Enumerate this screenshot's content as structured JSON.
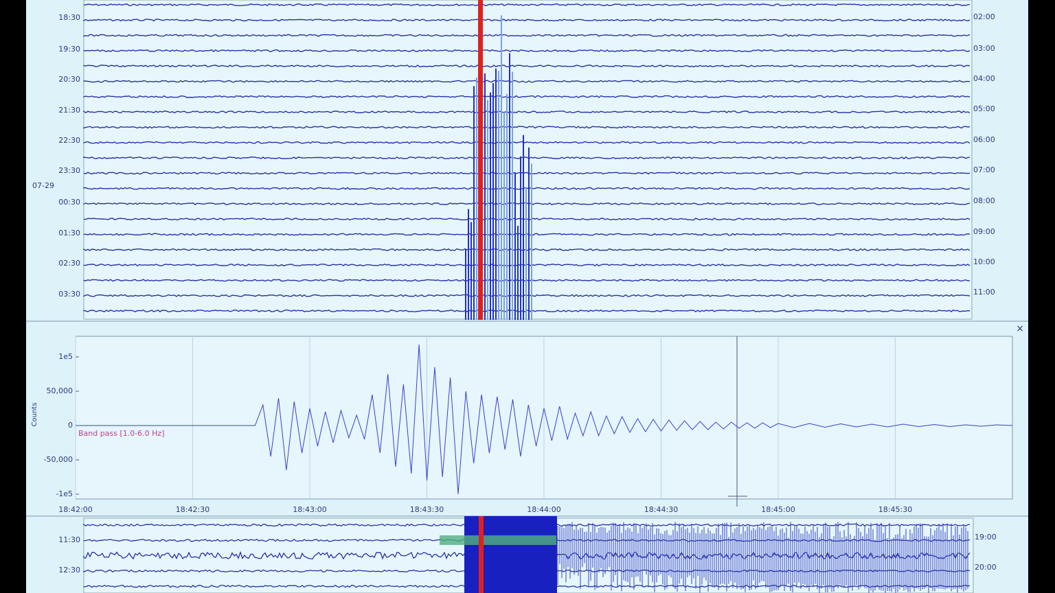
{
  "helicorder_top": {
    "left_labels": [
      "18:30",
      "19:30",
      "20:30",
      "21:30",
      "22:30",
      "23:30",
      "00:30",
      "01:30",
      "02:30",
      "03:30"
    ],
    "date_label": "07-29",
    "right_labels": [
      "02:00",
      "03:00",
      "04:00",
      "05:00",
      "06:00",
      "07:00",
      "08:00",
      "09:00",
      "10:00",
      "11:00"
    ]
  },
  "close_button": "×",
  "chart_data": {
    "type": "line",
    "y_label": "Counts",
    "annotation": "Band pass [1.0-6.0 Hz]",
    "color": "#3a3fd0",
    "xlim": [
      67320,
      67560
    ],
    "xticks": [
      {
        "value": 67320,
        "label": "18:42:00"
      },
      {
        "value": 67350,
        "label": "18:42:30"
      },
      {
        "value": 67380,
        "label": "18:43:00"
      },
      {
        "value": 67410,
        "label": "18:43:30"
      },
      {
        "value": 67440,
        "label": "18:44:00"
      },
      {
        "value": 67470,
        "label": "18:44:30"
      },
      {
        "value": 67500,
        "label": "18:45:00"
      },
      {
        "value": 67530,
        "label": "18:45:30"
      }
    ],
    "ylim": [
      -107000,
      130000
    ],
    "yticks": [
      {
        "value": 100000,
        "label": "1e5"
      },
      {
        "value": 50000,
        "label": "50,000"
      },
      0,
      {
        "value": -50000,
        "label": "-50,000"
      },
      {
        "value": -100000,
        "label": "-1e5"
      }
    ],
    "grid": true,
    "x": [
      67320,
      67366,
      67368,
      67370,
      67372,
      67374,
      67376,
      67378,
      67380,
      67382,
      67384,
      67386,
      67388,
      67390,
      67392,
      67394,
      67396,
      67398,
      67400,
      67402,
      67404,
      67406,
      67408,
      67410,
      67412,
      67414,
      67416,
      67418,
      67420,
      67422,
      67424,
      67426,
      67428,
      67430,
      67432,
      67434,
      67436,
      67438,
      67440,
      67442,
      67444,
      67446,
      67448,
      67450,
      67452,
      67454,
      67456,
      67458,
      67460,
      67462,
      67464,
      67466,
      67468,
      67470,
      67472,
      67474,
      67476,
      67478,
      67480,
      67482,
      67484,
      67486,
      67488,
      67490,
      67492,
      67494,
      67496,
      67498,
      67500,
      67504,
      67508,
      67512,
      67516,
      67520,
      67524,
      67528,
      67532,
      67536,
      67540,
      67544,
      67548,
      67552,
      67556,
      67560
    ],
    "values": [
      0,
      0,
      30000,
      -45000,
      40000,
      -65000,
      35000,
      -40000,
      25000,
      -30000,
      20000,
      -25000,
      22000,
      -18000,
      15000,
      -20000,
      45000,
      -40000,
      75000,
      -60000,
      60000,
      -70000,
      118000,
      -80000,
      85000,
      -75000,
      70000,
      -100000,
      50000,
      -55000,
      45000,
      -40000,
      42000,
      -35000,
      38000,
      -45000,
      30000,
      -30000,
      25000,
      -22000,
      28000,
      -20000,
      18000,
      -15000,
      20000,
      -15000,
      14000,
      -12000,
      13000,
      -10000,
      10000,
      -9000,
      9000,
      -8000,
      8000,
      -7000,
      7000,
      -6000,
      6000,
      -6000,
      5000,
      -5000,
      5000,
      -4000,
      4000,
      -4000,
      4000,
      -3000,
      3000,
      -3000,
      3000,
      -2500,
      2500,
      -2000,
      2000,
      -2000,
      2000,
      -1500,
      1500,
      -1500,
      1000,
      -1000,
      1000,
      0
    ]
  },
  "helicorder_bottom": {
    "left_labels": [
      "11:30",
      "12:30"
    ],
    "right_labels": [
      "19:00",
      "20:00"
    ]
  }
}
